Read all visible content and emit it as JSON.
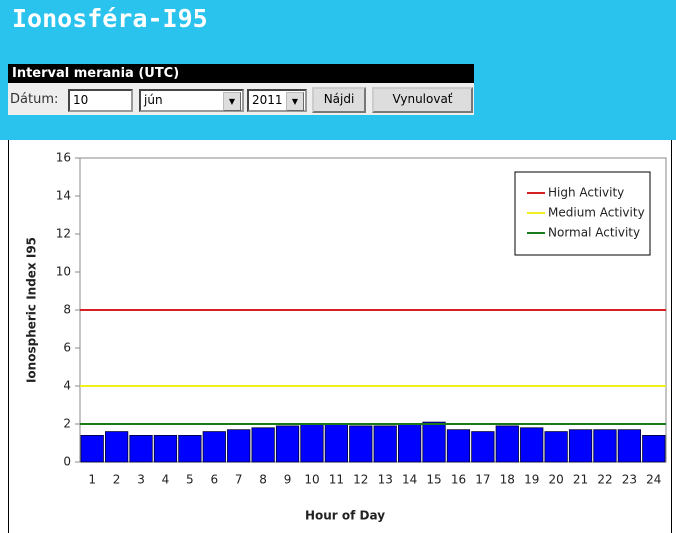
{
  "header": {
    "title": "Ionosféra-I95"
  },
  "form": {
    "section_title": "Interval merania (UTC)",
    "date_label": "Dátum:",
    "day": "10",
    "month": "jún",
    "year": "2011",
    "search_button": "Nájdi",
    "reset_button": "Vynulovať"
  },
  "chart_data": {
    "type": "bar",
    "x_label": "Hour of Day",
    "y_label": "Ionospheric Index I95",
    "categories": [
      "1",
      "2",
      "3",
      "4",
      "5",
      "6",
      "7",
      "8",
      "9",
      "10",
      "11",
      "12",
      "13",
      "14",
      "15",
      "16",
      "17",
      "18",
      "19",
      "20",
      "21",
      "22",
      "23",
      "24"
    ],
    "values": [
      1.4,
      1.6,
      1.4,
      1.4,
      1.4,
      1.6,
      1.7,
      1.8,
      1.9,
      2.0,
      2.0,
      1.9,
      1.9,
      2.0,
      2.1,
      1.7,
      1.6,
      1.9,
      1.8,
      1.6,
      1.7,
      1.7,
      1.7,
      1.4
    ],
    "color": "#0000ff",
    "thresholds": [
      {
        "name": "High Activity",
        "color": "#d42020",
        "value": 8
      },
      {
        "name": "Medium Activity",
        "color": "#f0f020",
        "value": 4
      },
      {
        "name": "Normal Activity",
        "color": "#1a7a1a",
        "value": 2
      }
    ],
    "ylim": [
      0,
      16
    ],
    "yticks": [
      0,
      2,
      4,
      6,
      8,
      10,
      12,
      14,
      16
    ],
    "legend": "upper right"
  }
}
